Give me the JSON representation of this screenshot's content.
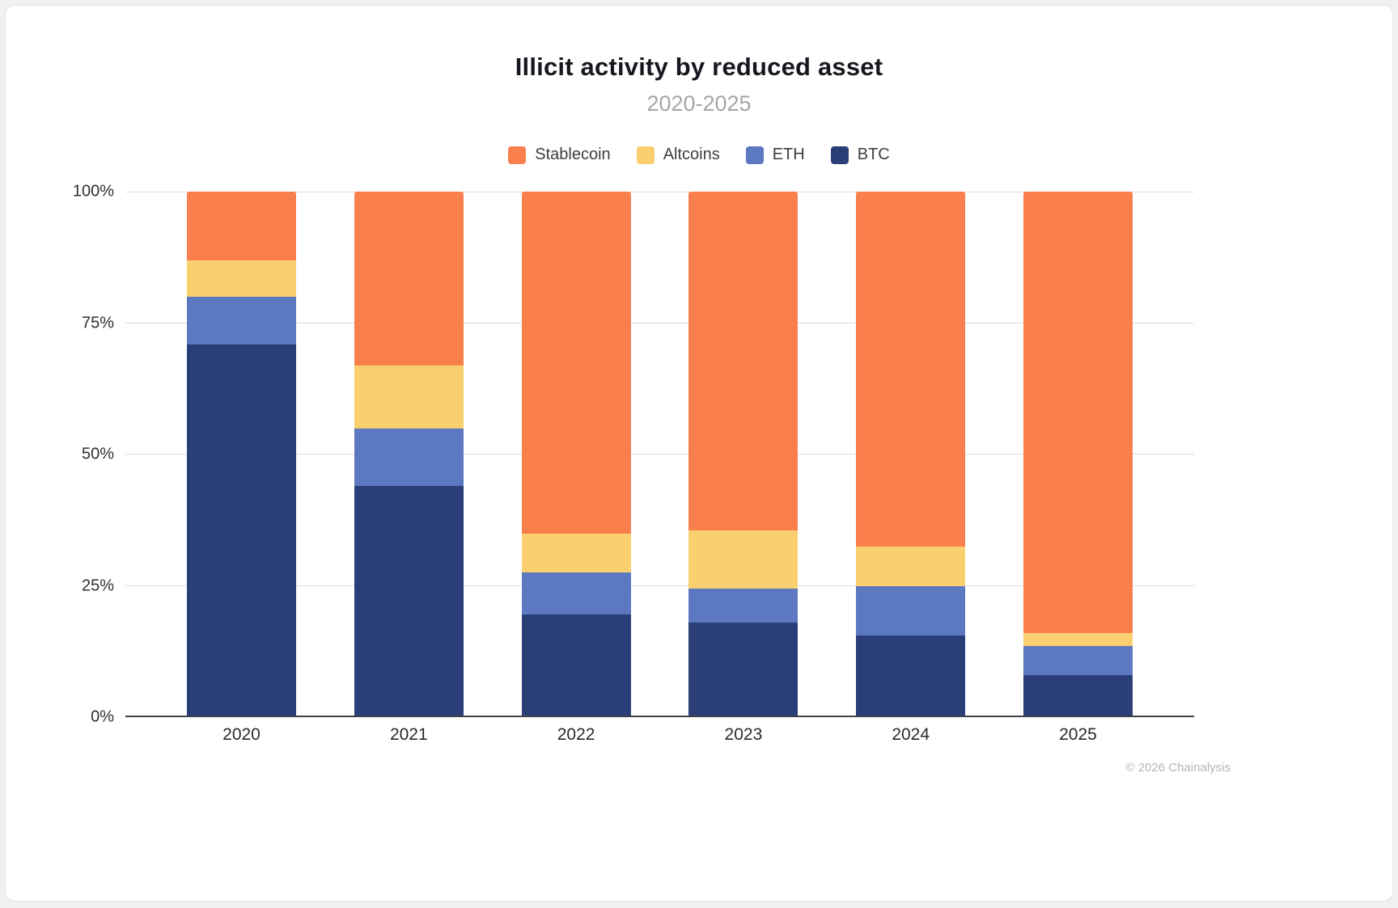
{
  "title": "Illicit activity by reduced asset",
  "subtitle": "2020-2025",
  "footer": "© 2026 Chainalysis",
  "chart_data": {
    "type": "bar",
    "stacked": true,
    "units": "percent",
    "title": "Illicit activity by reduced asset",
    "subtitle": "2020-2025",
    "categories": [
      "2020",
      "2021",
      "2022",
      "2023",
      "2024",
      "2025"
    ],
    "series": [
      {
        "name": "BTC",
        "color": "#2A3F77",
        "values": [
          71,
          44,
          19.5,
          18,
          15.5,
          8
        ]
      },
      {
        "name": "ETH",
        "color": "#5C78C0",
        "values": [
          9,
          11,
          8,
          6.5,
          9.5,
          5.5
        ]
      },
      {
        "name": "Altcoins",
        "color": "#F9CF6F",
        "values": [
          7,
          12,
          7.5,
          11,
          7.5,
          2.5
        ]
      },
      {
        "name": "Stablecoin",
        "color": "#F9804D",
        "values": [
          13,
          33,
          65,
          64.5,
          67.5,
          84
        ]
      }
    ],
    "legend_order": [
      "Stablecoin",
      "Altcoins",
      "ETH",
      "BTC"
    ],
    "legend_position": "top",
    "xlabel": "",
    "ylabel": "",
    "yticks": [
      "0%",
      "25%",
      "50%",
      "75%",
      "100%"
    ],
    "ylim": [
      0,
      100
    ],
    "grid": true
  }
}
